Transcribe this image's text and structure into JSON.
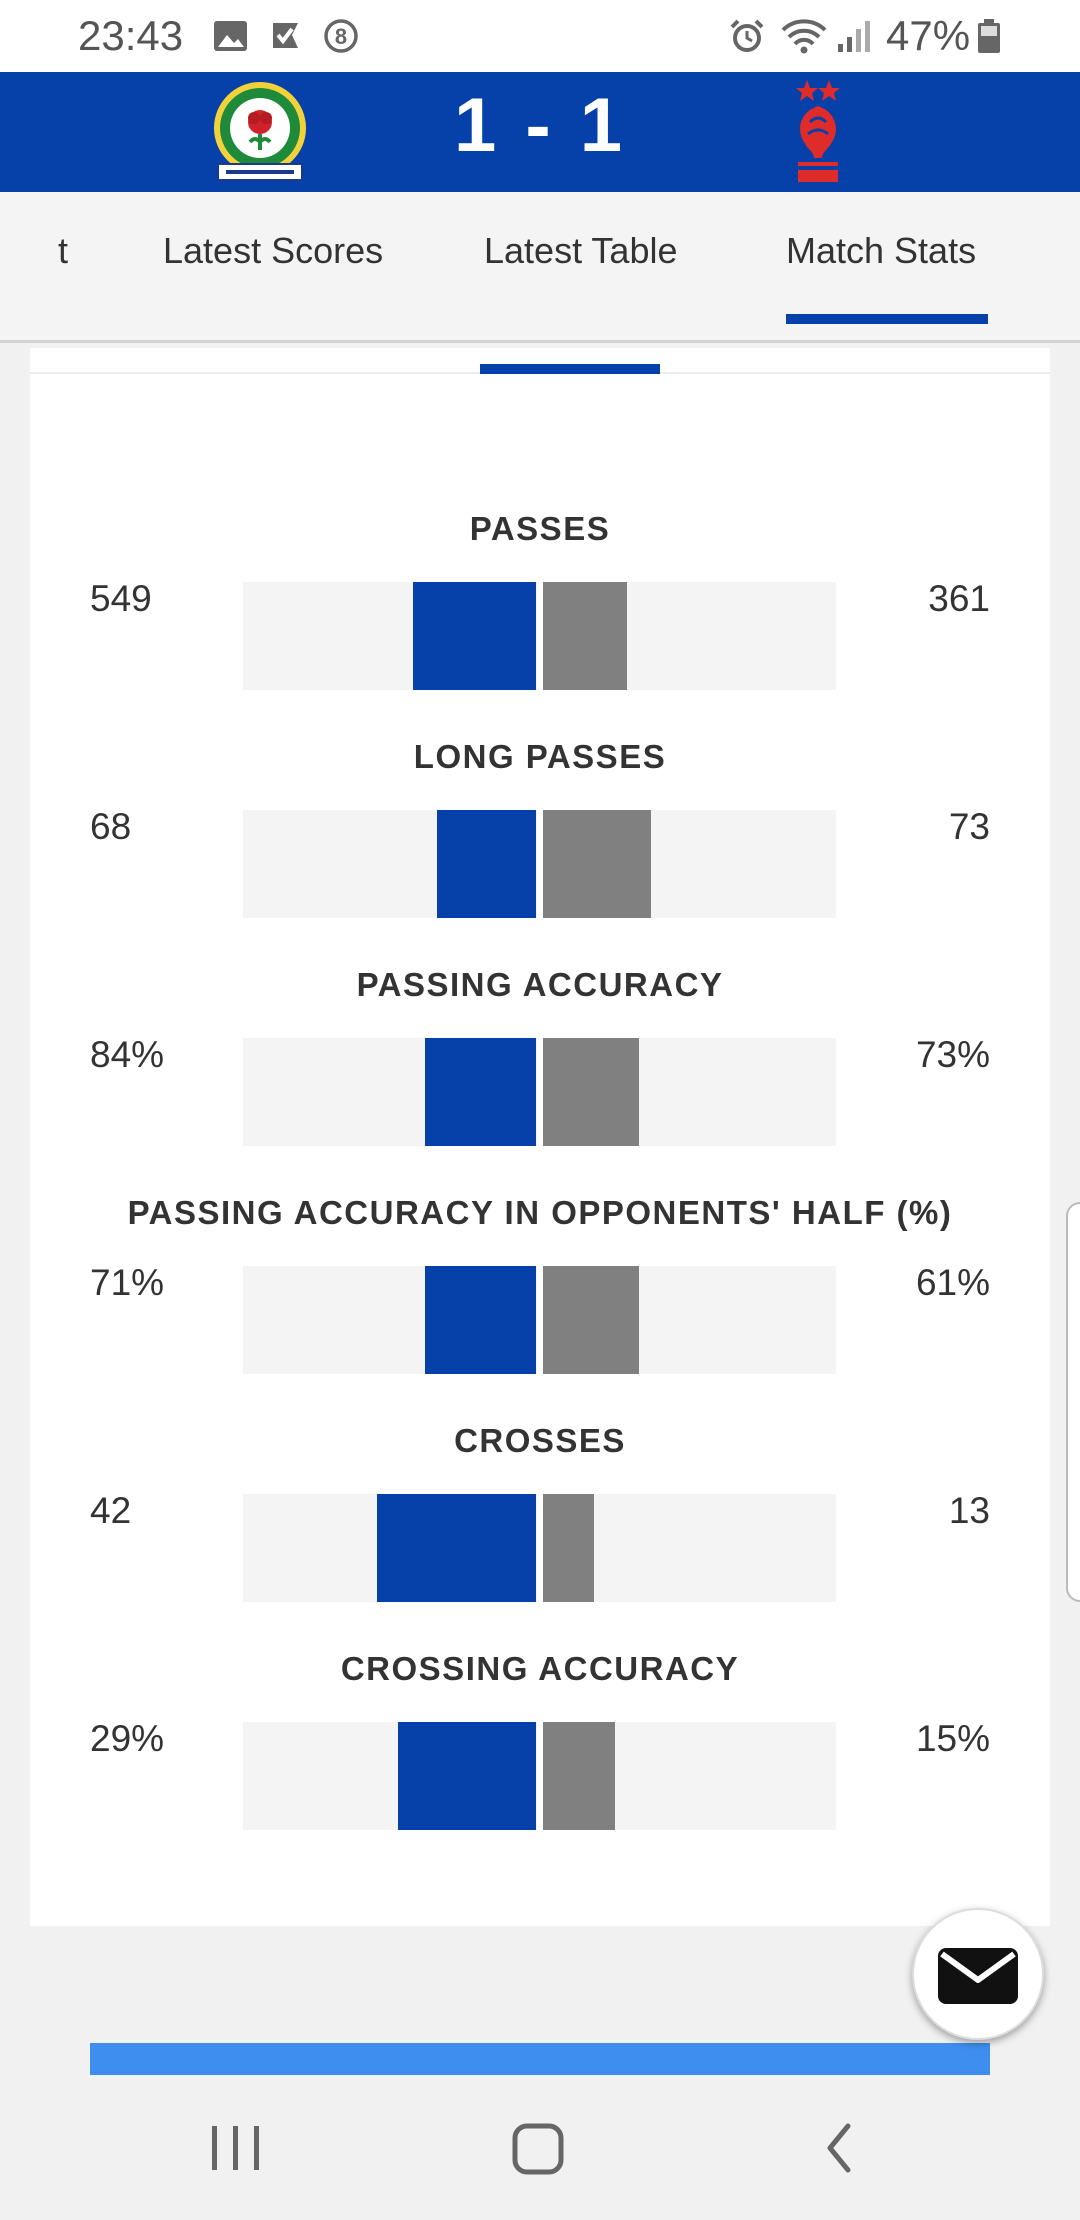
{
  "status_bar": {
    "time": "23:43",
    "battery": "47%",
    "left_icons": [
      "image-icon",
      "check-flag-icon",
      "circle-8-icon"
    ],
    "right_icons": [
      "alarm-icon",
      "wifi-icon",
      "signal-icon",
      "battery-icon"
    ]
  },
  "match": {
    "score": "1 - 1",
    "home_crest_icon": "blackburn-rovers-crest",
    "away_crest_icon": "nottingham-forest-crest",
    "home_color": "#0541a8",
    "away_color": "#808080"
  },
  "tabs": [
    {
      "label": "t",
      "active": false
    },
    {
      "label": "Latest Scores",
      "active": false
    },
    {
      "label": "Latest Table",
      "active": false
    },
    {
      "label": "Match Stats",
      "active": true
    }
  ],
  "stats": [
    {
      "title": "PASSES",
      "home": "549",
      "away": "361",
      "home_value": 549,
      "away_value": 361,
      "home_bar_fraction": 0.41,
      "away_bar_fraction": 0.28
    },
    {
      "title": "LONG PASSES",
      "home": "68",
      "away": "73",
      "home_value": 68,
      "away_value": 73,
      "home_bar_fraction": 0.33,
      "away_bar_fraction": 0.36
    },
    {
      "title": "PASSING ACCURACY",
      "home": "84%",
      "away": "73%",
      "home_value": 84,
      "away_value": 73,
      "home_bar_fraction": 0.37,
      "away_bar_fraction": 0.32
    },
    {
      "title": "PASSING ACCURACY IN OPPONENTS' HALF (%)",
      "home": "71%",
      "away": "61%",
      "home_value": 71,
      "away_value": 61,
      "home_bar_fraction": 0.37,
      "away_bar_fraction": 0.32
    },
    {
      "title": "CROSSES",
      "home": "42",
      "away": "13",
      "home_value": 42,
      "away_value": 13,
      "home_bar_fraction": 0.53,
      "away_bar_fraction": 0.17
    },
    {
      "title": "CROSSING ACCURACY",
      "home": "29%",
      "away": "15%",
      "home_value": 29,
      "away_value": 15,
      "home_bar_fraction": 0.46,
      "away_bar_fraction": 0.24
    }
  ],
  "fab_icon": "email-icon",
  "nav_icons": [
    "recent-apps-icon",
    "home-icon",
    "back-icon"
  ]
}
